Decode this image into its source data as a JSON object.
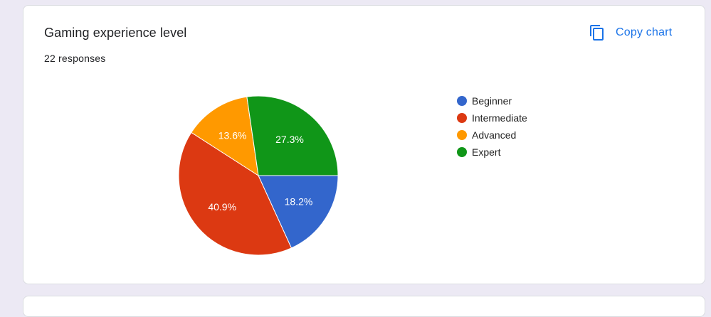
{
  "card": {
    "title": "Gaming experience level",
    "responses": "22 responses",
    "copy_label": "Copy chart",
    "copy_icon": "copy-icon",
    "accent": "#1a73e8"
  },
  "chart_data": {
    "type": "pie",
    "categories": [
      "Beginner",
      "Intermediate",
      "Advanced",
      "Expert"
    ],
    "values": [
      18.2,
      40.9,
      13.6,
      27.3
    ],
    "labels": [
      "18.2%",
      "40.9%",
      "13.6%",
      "27.3%"
    ],
    "colors": [
      "#3366cc",
      "#dc3912",
      "#ff9900",
      "#109618"
    ],
    "legend_position": "right"
  }
}
